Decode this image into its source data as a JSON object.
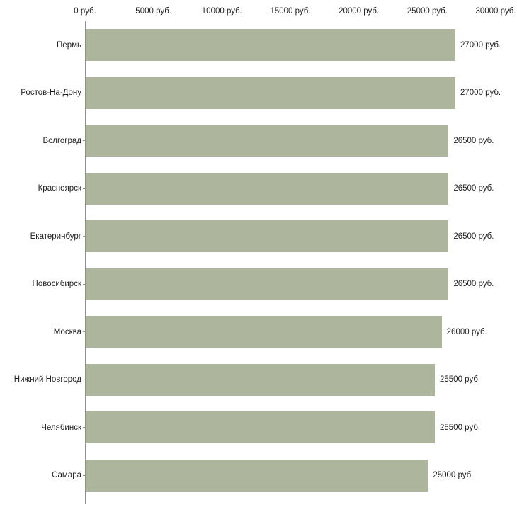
{
  "chart_data": {
    "type": "bar",
    "orientation": "horizontal",
    "title": "",
    "xlabel": "",
    "ylabel": "",
    "xlim": [
      0,
      30000
    ],
    "grid": false,
    "legend": false,
    "bar_color": "#adb59c",
    "axis_color": "#8f8f8f",
    "x_ticks": [
      0,
      5000,
      10000,
      15000,
      20000,
      25000,
      30000
    ],
    "x_tick_labels": [
      "0 руб.",
      "5000 руб.",
      "10000 руб.",
      "15000 руб.",
      "20000 руб.",
      "25000 руб.",
      "30000 руб."
    ],
    "categories": [
      "Пермь",
      "Ростов-На-Дону",
      "Волгоград",
      "Красноярск",
      "Екатеринбург",
      "Новосибирск",
      "Москва",
      "Нижний Новгород",
      "Челябинск",
      "Самара"
    ],
    "values": [
      27000,
      27000,
      26500,
      26500,
      26500,
      26500,
      26000,
      25500,
      25500,
      25000
    ],
    "value_labels": [
      "27000 руб.",
      "27000 руб.",
      "26500 руб.",
      "26500 руб.",
      "26500 руб.",
      "26500 руб.",
      "26000 руб.",
      "25500 руб.",
      "25500 руб.",
      "25000 руб."
    ]
  }
}
